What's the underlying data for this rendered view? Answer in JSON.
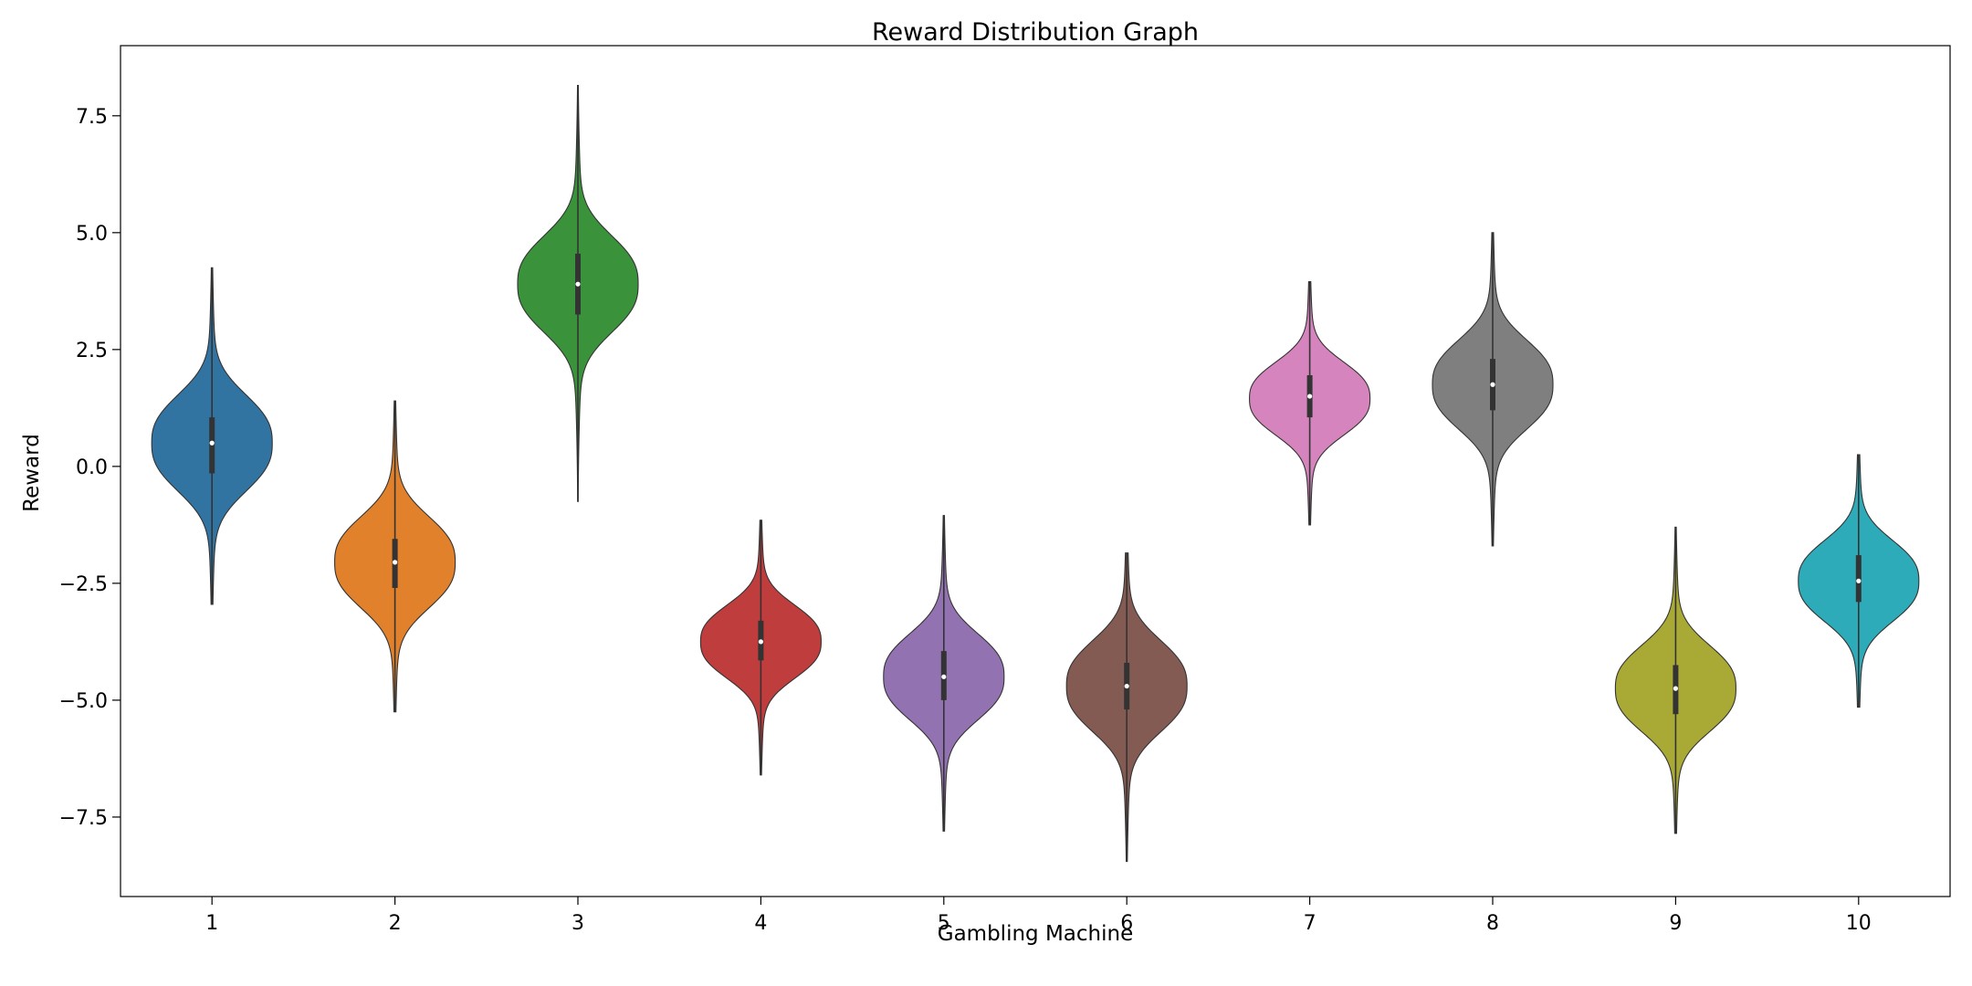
{
  "chart_data": {
    "type": "violin",
    "title": "Reward Distribution Graph",
    "xlabel": "Gambling Machine",
    "ylabel": "Reward",
    "ylim": [
      -9.2,
      9.0
    ],
    "yticks": [
      -7.5,
      -5.0,
      -2.5,
      0.0,
      2.5,
      5.0,
      7.5
    ],
    "ytick_labels": [
      "−7.5",
      "−5.0",
      "−2.5",
      "0.0",
      "2.5",
      "5.0",
      "7.5"
    ],
    "categories": [
      "1",
      "2",
      "3",
      "4",
      "5",
      "6",
      "7",
      "8",
      "9",
      "10"
    ],
    "grid": false,
    "legend": false,
    "series": [
      {
        "category": "1",
        "color": "#3274a1",
        "min": -2.95,
        "max": 4.25,
        "q1": -0.15,
        "median": 0.5,
        "q3": 1.05,
        "mode": 0.5,
        "sd": 0.95,
        "shoulder": 0.2
      },
      {
        "category": "2",
        "color": "#e1812c",
        "min": -5.25,
        "max": 1.4,
        "q1": -2.6,
        "median": -2.05,
        "q3": -1.55,
        "mode": -2.05,
        "sd": 0.9,
        "shoulder": 0.15
      },
      {
        "category": "3",
        "color": "#3a923a",
        "min": -0.75,
        "max": 8.15,
        "q1": 3.25,
        "median": 3.9,
        "q3": 4.55,
        "mode": 3.9,
        "sd": 0.95,
        "shoulder": 0.2
      },
      {
        "category": "4",
        "color": "#c03d3e",
        "min": -6.6,
        "max": -1.15,
        "q1": -4.15,
        "median": -3.75,
        "q3": -3.3,
        "mode": -3.75,
        "sd": 0.72,
        "shoulder": 0.15
      },
      {
        "category": "5",
        "color": "#9372b2",
        "min": -7.8,
        "max": -1.05,
        "q1": -5.0,
        "median": -4.5,
        "q3": -3.95,
        "mode": -4.5,
        "sd": 0.85,
        "shoulder": 0.15
      },
      {
        "category": "6",
        "color": "#845b53",
        "min": -8.45,
        "max": -1.85,
        "q1": -5.2,
        "median": -4.7,
        "q3": -4.2,
        "mode": -4.7,
        "sd": 0.9,
        "shoulder": 0.15
      },
      {
        "category": "7",
        "color": "#d684bd",
        "min": -1.25,
        "max": 3.95,
        "q1": 1.05,
        "median": 1.5,
        "q3": 1.95,
        "mode": 1.45,
        "sd": 0.72,
        "shoulder": 0.15
      },
      {
        "category": "8",
        "color": "#7f7f7f",
        "min": -1.7,
        "max": 5.0,
        "q1": 1.2,
        "median": 1.75,
        "q3": 2.3,
        "mode": 1.75,
        "sd": 0.88,
        "shoulder": 0.15
      },
      {
        "category": "9",
        "color": "#a9aa35",
        "min": -7.85,
        "max": -1.3,
        "q1": -5.3,
        "median": -4.75,
        "q3": -4.25,
        "mode": -4.75,
        "sd": 0.85,
        "shoulder": 0.15
      },
      {
        "category": "10",
        "color": "#2eabb8",
        "min": -5.15,
        "max": 0.25,
        "q1": -2.9,
        "median": -2.45,
        "q3": -1.9,
        "mode": -2.45,
        "sd": 0.8,
        "shoulder": 0.15
      }
    ]
  }
}
